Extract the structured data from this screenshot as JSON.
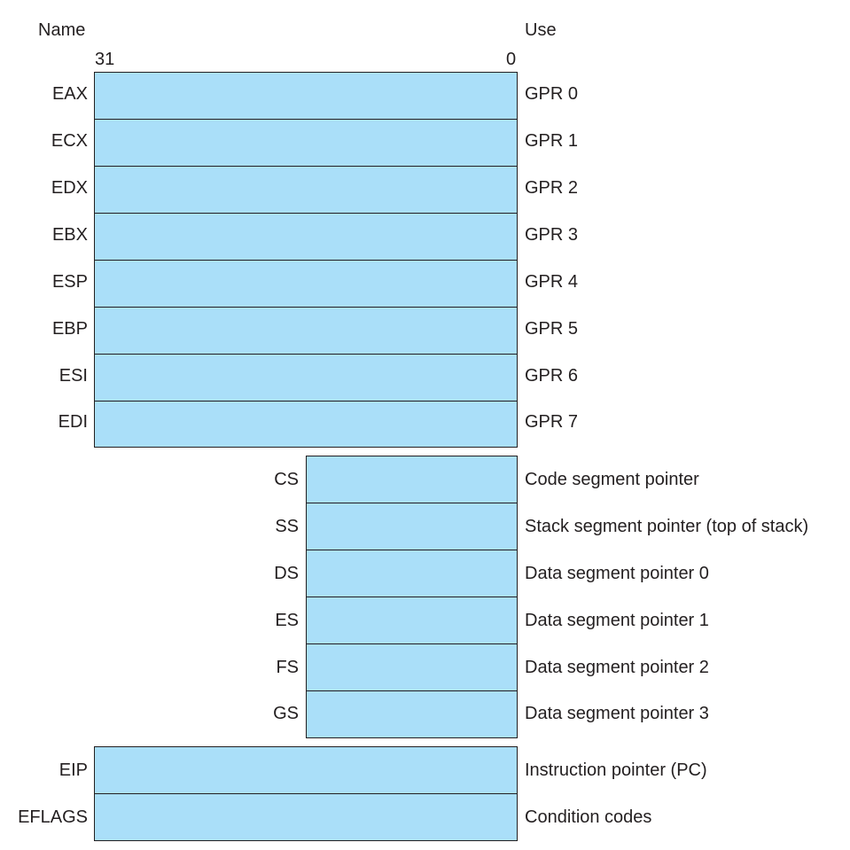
{
  "header": {
    "name_label": "Name",
    "use_label": "Use",
    "bit_high": "31",
    "bit_low": "0"
  },
  "colors": {
    "register_fill": "#aadff9",
    "outline": "#231f20"
  },
  "general_registers": [
    {
      "name": "EAX",
      "use": "GPR 0"
    },
    {
      "name": "ECX",
      "use": "GPR 1"
    },
    {
      "name": "EDX",
      "use": "GPR 2"
    },
    {
      "name": "EBX",
      "use": "GPR 3"
    },
    {
      "name": "ESP",
      "use": "GPR 4"
    },
    {
      "name": "EBP",
      "use": "GPR 5"
    },
    {
      "name": "ESI",
      "use": "GPR 6"
    },
    {
      "name": "EDI",
      "use": "GPR 7"
    }
  ],
  "segment_registers": [
    {
      "name": "CS",
      "use": "Code segment pointer"
    },
    {
      "name": "SS",
      "use": "Stack segment pointer (top of stack)"
    },
    {
      "name": "DS",
      "use": "Data segment pointer 0"
    },
    {
      "name": "ES",
      "use": "Data segment pointer 1"
    },
    {
      "name": "FS",
      "use": "Data segment pointer 2"
    },
    {
      "name": "GS",
      "use": "Data segment pointer 3"
    }
  ],
  "special_registers": [
    {
      "name": "EIP",
      "use": "Instruction pointer (PC)"
    },
    {
      "name": "EFLAGS",
      "use": "Condition codes"
    }
  ]
}
